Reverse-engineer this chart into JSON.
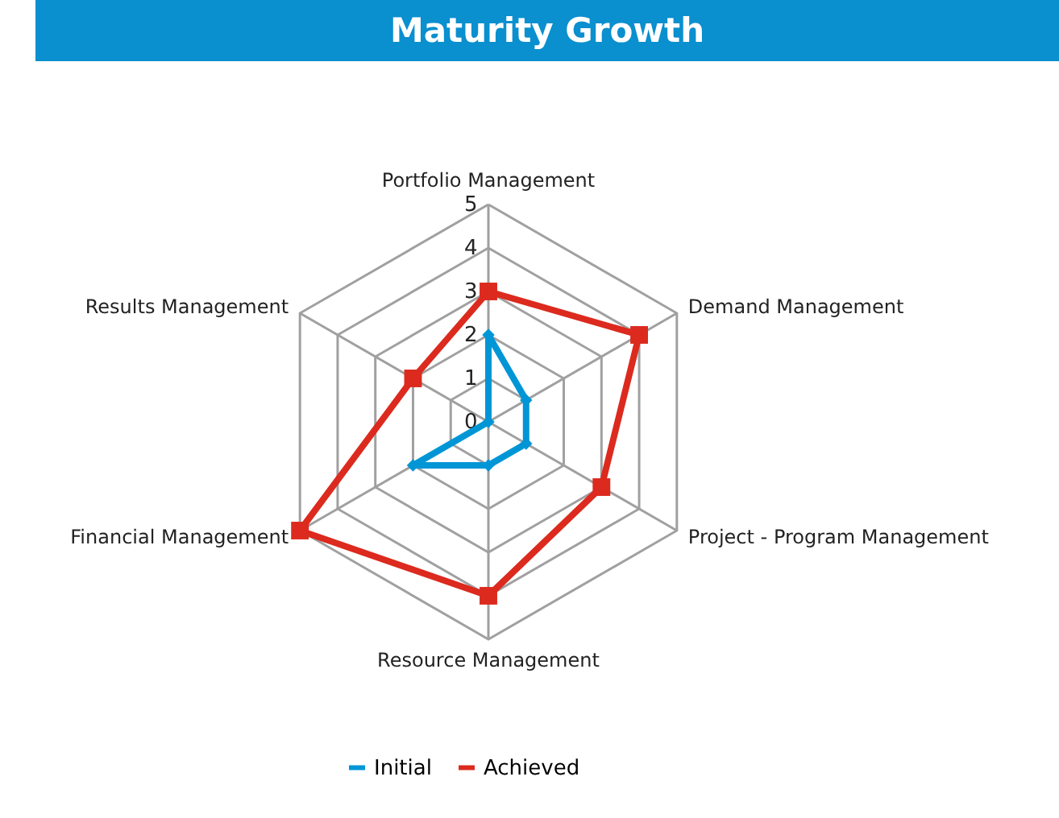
{
  "chart_data": {
    "type": "radar",
    "title": "Maturity Growth",
    "categories": [
      "Portfolio Management",
      "Demand Management",
      "Project - Program Management",
      "Resource Management",
      "Financial Management",
      "Results Management"
    ],
    "series": [
      {
        "name": "Initial",
        "color": "#0096d6",
        "marker": "diamond",
        "values": [
          2,
          1,
          1,
          1,
          2,
          0
        ]
      },
      {
        "name": "Achieved",
        "color": "#dc2a1e",
        "marker": "square",
        "values": [
          3,
          4,
          3,
          4,
          5,
          2
        ]
      }
    ],
    "ylim": [
      0,
      5
    ],
    "yticks": [
      0,
      1,
      2,
      3,
      4,
      5
    ],
    "grid": true,
    "legend": "bottom"
  }
}
